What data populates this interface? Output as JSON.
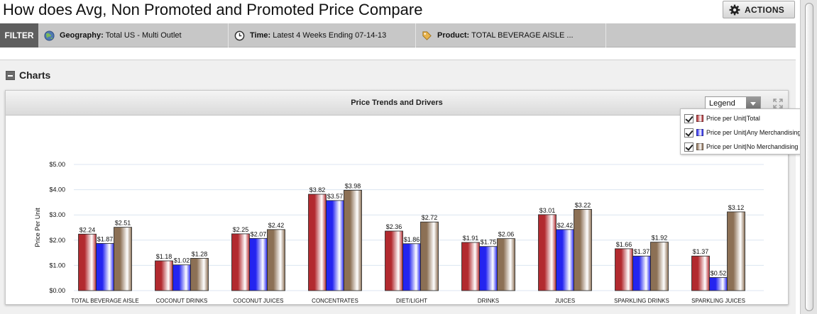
{
  "page": {
    "title": "How does Avg, Non Promoted and Promoted Price Compare",
    "actions_label": "ACTIONS"
  },
  "filter_bar": {
    "label": "FILTER",
    "geography": {
      "key": "Geography:",
      "value": "Total US - Multi Outlet",
      "icon": "globe-icon"
    },
    "time": {
      "key": "Time:",
      "value": "Latest 4 Weeks Ending 07-14-13",
      "icon": "clock-icon"
    },
    "product": {
      "key": "Product:",
      "value": "TOTAL BEVERAGE AISLE ...",
      "icon": "tag-icon"
    }
  },
  "charts_section": {
    "title": "Charts"
  },
  "chart_panel": {
    "title": "Price Trends and Drivers",
    "legend_dropdown": "Legend",
    "legend_items": [
      {
        "label": "Price per Unit|Total",
        "color": "#b22a2f",
        "checked": true
      },
      {
        "label": "Price per Unit|Any Merchandising",
        "color": "#2424f0",
        "checked": true
      },
      {
        "label": "Price per Unit|No Merchandising",
        "color": "#8c7055",
        "checked": true
      }
    ]
  },
  "chart_data": {
    "type": "bar",
    "title": "Price Trends and Drivers",
    "ylabel": "Price Per Unit",
    "xlabel": "",
    "ylim": [
      0,
      5
    ],
    "yticks": [
      0,
      1,
      2,
      3,
      4,
      5
    ],
    "ytick_labels": [
      "$0.00",
      "$1.00",
      "$2.00",
      "$3.00",
      "$4.00",
      "$5.00"
    ],
    "grid": true,
    "legend_position": "top-right",
    "categories": [
      "TOTAL BEVERAGE AISLE",
      "COCONUT DRINKS",
      "COCONUT JUICES",
      "CONCENTRATES",
      "DIET/LIGHT",
      "DRINKS",
      "JUICES",
      "SPARKLING DRINKS",
      "SPARKLING JUICES"
    ],
    "series": [
      {
        "name": "Price per Unit|Total",
        "color": "#b22a2f",
        "values": [
          2.24,
          1.18,
          2.25,
          3.82,
          2.36,
          1.91,
          3.01,
          1.66,
          1.37
        ],
        "labels": [
          "$2.24",
          "$1.18",
          "$2.25",
          "$3.82",
          "$2.36",
          "$1.91",
          "$3.01",
          "$1.66",
          "$1.37"
        ]
      },
      {
        "name": "Price per Unit|Any Merchandising",
        "color": "#2424f0",
        "values": [
          1.87,
          1.02,
          2.07,
          3.57,
          1.86,
          1.75,
          2.42,
          1.37,
          0.52
        ],
        "labels": [
          "$1.87",
          "$1.02",
          "$2.07",
          "$3.57",
          "$1.86",
          "$1.75",
          "$2.42",
          "$1.37",
          "$0.52"
        ]
      },
      {
        "name": "Price per Unit|No Merchandising",
        "color": "#8c7055",
        "values": [
          2.51,
          1.28,
          2.42,
          3.98,
          2.72,
          2.06,
          3.22,
          1.92,
          3.12
        ],
        "labels": [
          "$2.51",
          "$1.28",
          "$2.42",
          "$3.98",
          "$2.72",
          "$2.06",
          "$3.22",
          "$1.92",
          "$3.12"
        ]
      }
    ]
  }
}
